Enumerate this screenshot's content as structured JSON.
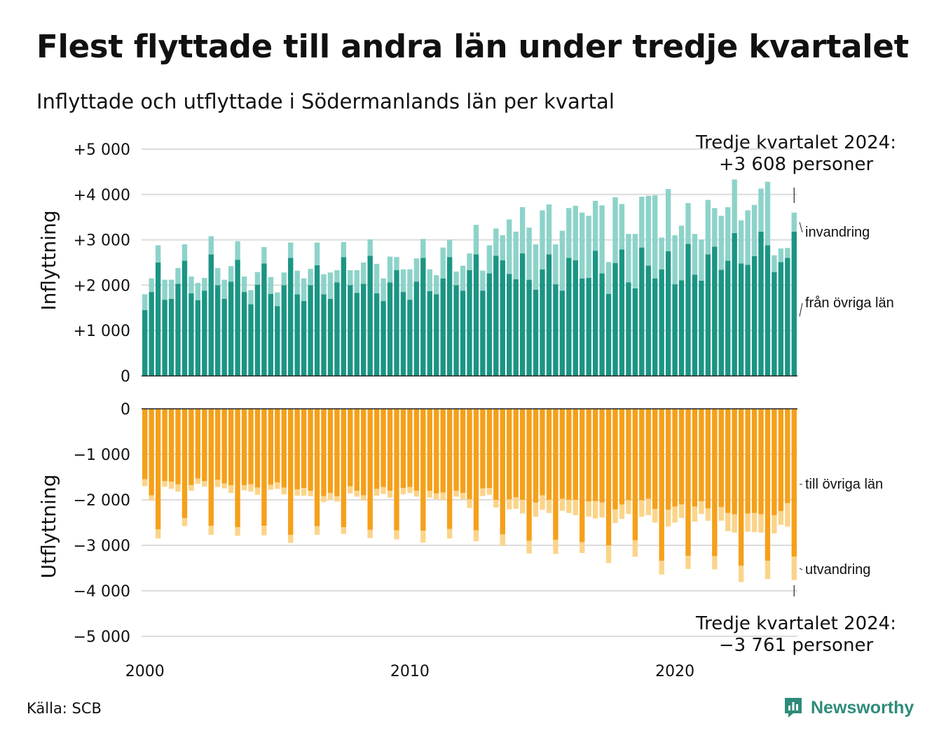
{
  "title": "Flest flyttade till andra län under tredje kvartalet",
  "subtitle": "Inflyttade och utflyttade i Södermanlands län per kvartal",
  "source": "Källa: SCB",
  "brand": "Newsworthy",
  "colors": {
    "in_domestic": "#1b9584",
    "in_immigration": "#8dd3c9",
    "out_domestic": "#f5a01a",
    "out_emigration": "#fbd48a",
    "brand": "#2e8b7a"
  },
  "annotations": {
    "top_line1": "Tredje kvartalet 2024:",
    "top_line2": "+3 608 personer",
    "bottom_line1": "Tredje kvartalet 2024:",
    "bottom_line2": "−3 761 personer"
  },
  "chart_data": {
    "type": "bar",
    "stacked": true,
    "x_start": "2000 Q1",
    "x_end": "2024 Q3",
    "x_ticks": [
      "2000",
      "2010",
      "2020"
    ],
    "grid": true,
    "panels": [
      {
        "id": "inflyttning",
        "ylabel": "Inflyttning",
        "ylim": [
          0,
          5000
        ],
        "y_ticks": [
          "0",
          "+1 000",
          "+2 000",
          "+3 000",
          "+4 000",
          "+5 000"
        ],
        "series": [
          {
            "name": "från övriga län",
            "values": [
              1450,
              1850,
              2500,
              1680,
              1700,
              2030,
              2540,
              1820,
              1670,
              1880,
              2680,
              2000,
              1700,
              2080,
              2560,
              1850,
              1580,
              2010,
              2480,
              1810,
              1540,
              2000,
              2600,
              1800,
              1650,
              2000,
              2440,
              1800,
              1700,
              2060,
              2620,
              2000,
              1830,
              2030,
              2650,
              1820,
              1650,
              2060,
              2330,
              1850,
              1680,
              2080,
              2600,
              1870,
              1800,
              2150,
              2620,
              2000,
              1880,
              2330,
              2680,
              1880,
              2260,
              2650,
              2550,
              2250,
              2130,
              2700,
              2120,
              1900,
              2350,
              2680,
              2020,
              1880,
              2600,
              2550,
              2150,
              2160,
              2760,
              2260,
              1810,
              2490,
              2790,
              2060,
              1930,
              2830,
              2430,
              2150,
              2350,
              2750,
              2020,
              2110,
              2910,
              2230,
              2100,
              2680,
              2850,
              2340,
              2540,
              3150,
              2480,
              2450,
              2640,
              3180,
              2880,
              2290,
              2510,
              2600,
              3180
            ]
          },
          {
            "name": "invandring",
            "values": [
              350,
              300,
              380,
              440,
              420,
              350,
              360,
              370,
              380,
              280,
              400,
              380,
              420,
              340,
              410,
              340,
              310,
              280,
              360,
              370,
              300,
              280,
              340,
              520,
              500,
              360,
              500,
              440,
              580,
              270,
              330,
              330,
              500,
              470,
              360,
              650,
              500,
              570,
              290,
              500,
              670,
              510,
              420,
              480,
              420,
              680,
              380,
              300,
              550,
              370,
              650,
              440,
              620,
              600,
              550,
              1200,
              1050,
              1020,
              1150,
              1000,
              1300,
              1100,
              880,
              1320,
              1100,
              1200,
              1450,
              1370,
              1100,
              1500,
              700,
              1450,
              1000,
              1070,
              1200,
              1120,
              1540,
              1830,
              700,
              1370,
              1080,
              1200,
              900,
              900,
              900,
              1200,
              850,
              1190,
              1180,
              1180,
              950,
              1200,
              1130,
              950,
              1400,
              370,
              300,
              220,
              420
            ]
          }
        ]
      },
      {
        "id": "utflyttning",
        "ylabel": "Utflyttning",
        "ylim": [
          -5000,
          0
        ],
        "y_ticks": [
          "0",
          "−1 000",
          "−2 000",
          "−3 000",
          "−4 000",
          "−5 000"
        ],
        "series": [
          {
            "name": "till övriga län",
            "values": [
              -1550,
              -1900,
              -2650,
              -1590,
              -1600,
              -1660,
              -2400,
              -1680,
              -1530,
              -1590,
              -2570,
              -1560,
              -1640,
              -1680,
              -2600,
              -1680,
              -1660,
              -1730,
              -2570,
              -1670,
              -1620,
              -1730,
              -2770,
              -1770,
              -1740,
              -1800,
              -2580,
              -1920,
              -1850,
              -1920,
              -2600,
              -1700,
              -1800,
              -1900,
              -2660,
              -1760,
              -1720,
              -1800,
              -2670,
              -1740,
              -1720,
              -1800,
              -2680,
              -1800,
              -1860,
              -1840,
              -2640,
              -1800,
              -1850,
              -1990,
              -2670,
              -1750,
              -1740,
              -2000,
              -2760,
              -1990,
              -1950,
              -2000,
              -2900,
              -2060,
              -1900,
              -2000,
              -2880,
              -1980,
              -2000,
              -2000,
              -2930,
              -2040,
              -2030,
              -2060,
              -3000,
              -2210,
              -2100,
              -2010,
              -2890,
              -2010,
              -1980,
              -2200,
              -3340,
              -2220,
              -2150,
              -2100,
              -3230,
              -2150,
              -2030,
              -2190,
              -3240,
              -2160,
              -2290,
              -2320,
              -3450,
              -2300,
              -2290,
              -2320,
              -3340,
              -2340,
              -2250,
              -2070,
              -3250
            ]
          },
          {
            "name": "utvandring",
            "values": [
              -150,
              -120,
              -200,
              -120,
              -160,
              -160,
              -180,
              -120,
              -120,
              -120,
              -200,
              -160,
              -110,
              -170,
              -190,
              -110,
              -160,
              -160,
              -210,
              -110,
              -140,
              -150,
              -180,
              -140,
              -170,
              -120,
              -190,
              -130,
              -150,
              -120,
              -150,
              -160,
              -130,
              -120,
              -180,
              -150,
              -150,
              -150,
              -200,
              -140,
              -130,
              -130,
              -260,
              -150,
              -130,
              -170,
              -210,
              -130,
              -140,
              -190,
              -240,
              -170,
              -150,
              -170,
              -250,
              -220,
              -250,
              -300,
              -280,
              -310,
              -320,
              -290,
              -310,
              -260,
              -290,
              -340,
              -240,
              -330,
              -380,
              -330,
              -390,
              -300,
              -320,
              -300,
              -360,
              -360,
              -360,
              -300,
              -300,
              -370,
              -350,
              -300,
              -290,
              -330,
              -280,
              -270,
              -290,
              -300,
              -400,
              -400,
              -360,
              -400,
              -420,
              -400,
              -400,
              -400,
              -300,
              -520,
              -511
            ]
          }
        ]
      }
    ]
  }
}
